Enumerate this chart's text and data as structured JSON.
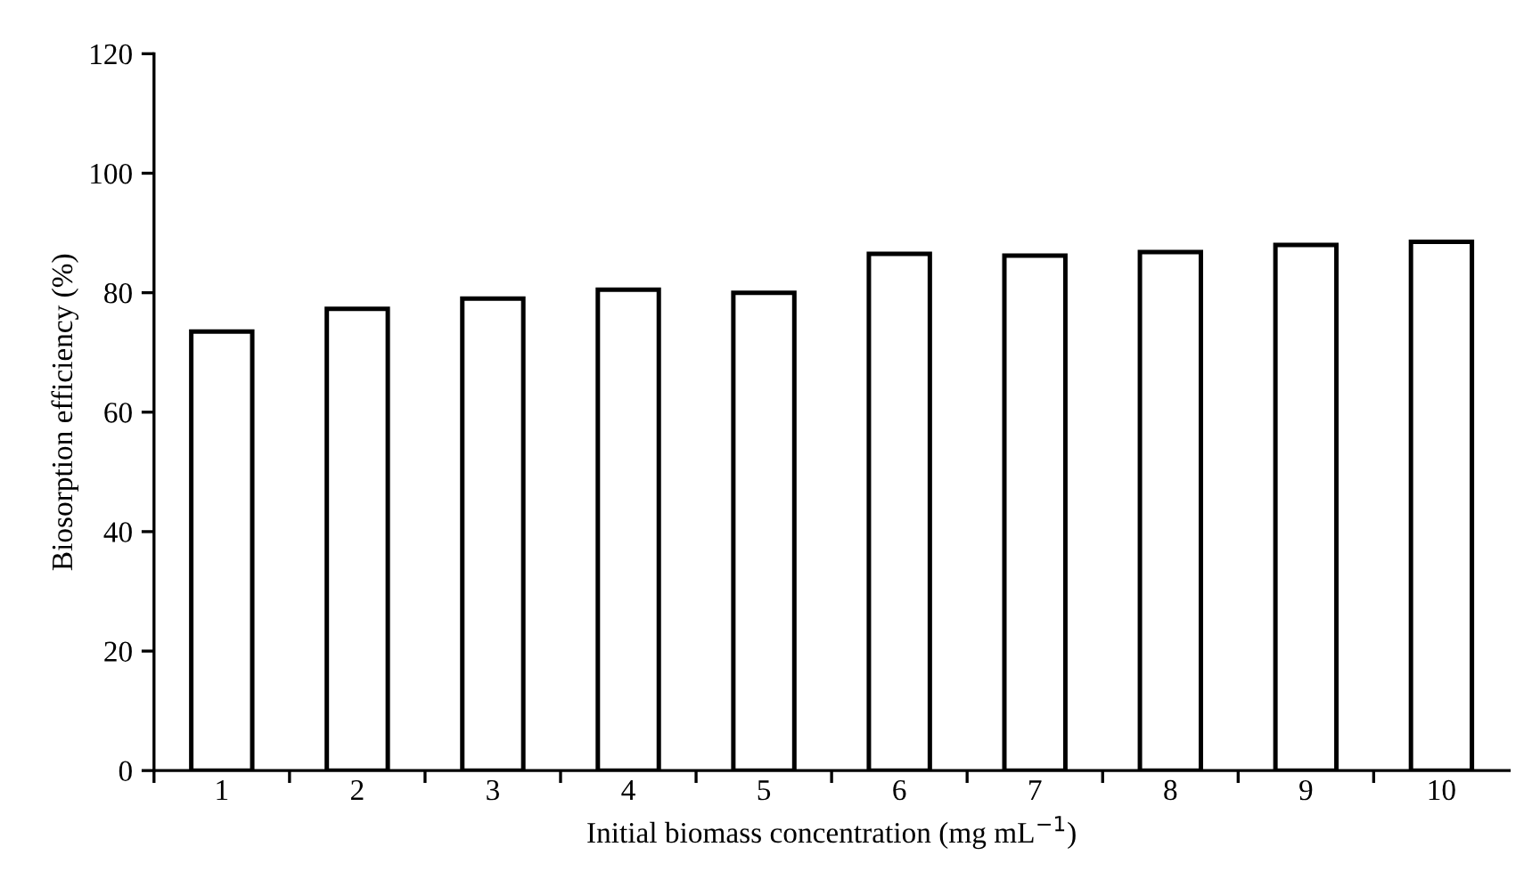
{
  "chart_data": {
    "type": "bar",
    "xlabel": "Initial biomass concentration (mg mL$^{−1}$)",
    "ylabel": "Biosorption efficiency (%)",
    "categories": [
      "1",
      "2",
      "3",
      "4",
      "5",
      "6",
      "7",
      "8",
      "9",
      "10"
    ],
    "values": [
      73.5,
      77.3,
      79,
      80.5,
      80,
      86.5,
      86.2,
      86.8,
      88,
      88.5
    ],
    "color": "#ffffff",
    "ylim": [
      0,
      120
    ],
    "yticks": [
      0,
      20,
      40,
      60,
      80,
      100,
      120
    ],
    "grid": false,
    "legend": false
  }
}
